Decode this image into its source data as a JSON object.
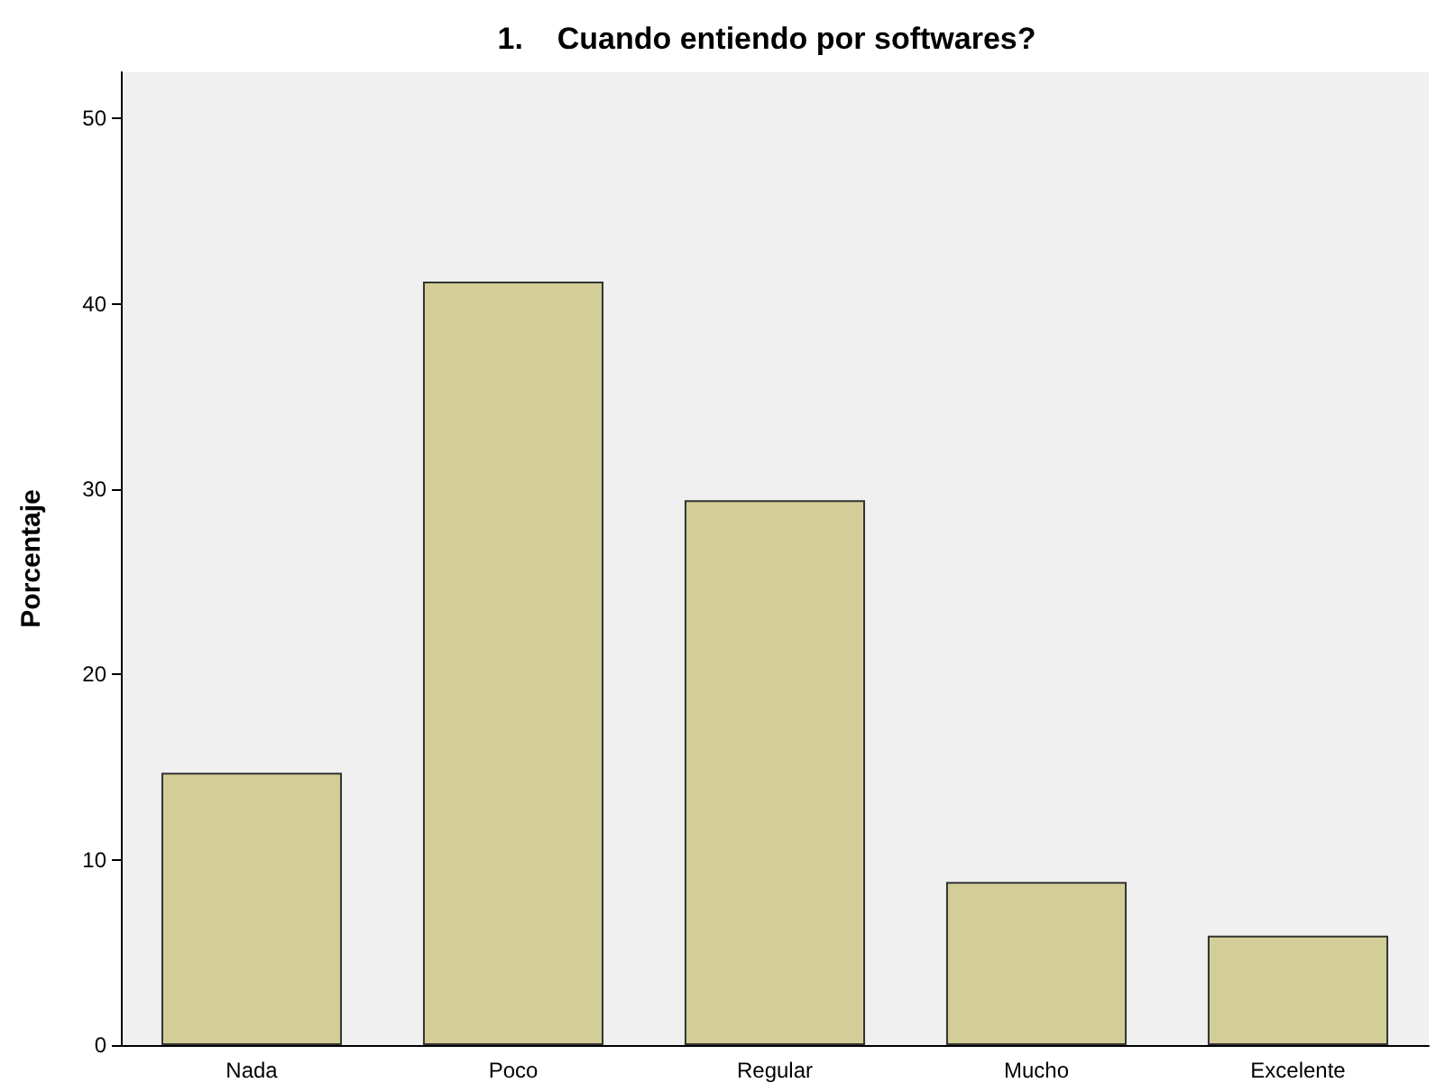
{
  "chart_data": {
    "type": "bar",
    "title": "1.    Cuando entiendo por softwares?",
    "ylabel": "Porcentaje",
    "categories": [
      "Nada",
      "Poco",
      "Regular",
      "Mucho",
      "Excelente"
    ],
    "values": [
      14.7,
      41.2,
      29.4,
      8.8,
      5.9
    ],
    "color": "#d3ce97",
    "ylim": [
      0,
      52.5
    ],
    "yticks": [
      0,
      10,
      20,
      30,
      40,
      50
    ]
  }
}
